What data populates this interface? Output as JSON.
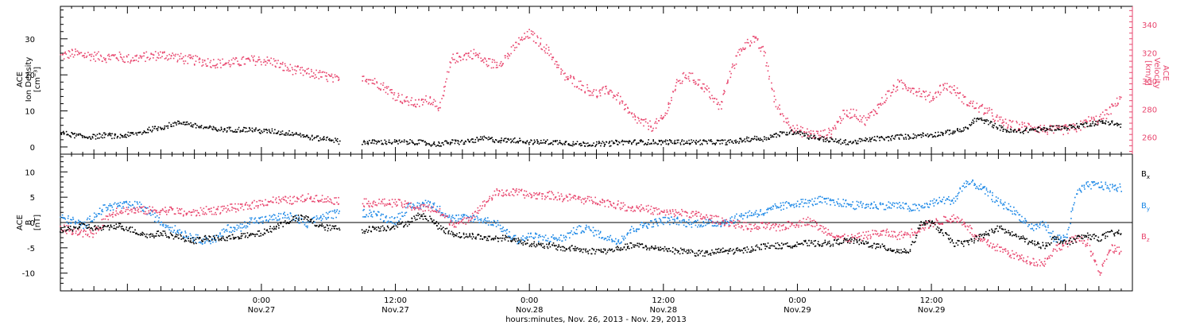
{
  "chart_data": [
    {
      "type": "scatter",
      "panel": "top",
      "x_unit": "hours since 2013-11-26 00:00 UT",
      "xlim": [
        6,
        102
      ],
      "left_axis": {
        "label_lines": [
          "ACE",
          "Ion Density",
          "[cm⁻³]"
        ],
        "ylim": [
          -2,
          39
        ],
        "ticks": [
          0,
          10,
          20,
          30
        ]
      },
      "right_axis": {
        "label_lines": [
          "ACE",
          "Velocity",
          "[km/s]"
        ],
        "ylim": [
          248,
          353
        ],
        "ticks": [
          260,
          280,
          300,
          320,
          340
        ],
        "color": "#e8466e"
      },
      "series": [
        {
          "name": "",
          "axis": "left",
          "color": "#000000",
          "x": [
            6,
            7,
            8,
            9,
            10,
            11,
            12,
            13,
            14,
            15,
            16,
            17,
            18,
            19,
            20,
            21,
            22,
            23,
            24,
            25,
            26,
            27,
            28,
            29,
            30,
            31,
            33,
            34,
            35,
            36,
            37,
            38,
            39,
            40,
            41,
            42,
            43,
            44,
            45,
            46,
            47,
            48,
            49,
            50,
            51,
            52,
            53,
            54,
            55,
            56,
            57,
            58,
            59,
            60,
            61,
            62,
            63,
            64,
            65,
            66,
            67,
            68,
            69,
            70,
            71,
            72,
            73,
            74,
            75,
            76,
            77,
            78,
            79,
            80,
            81,
            82,
            83,
            84,
            85,
            86,
            87,
            88,
            89,
            90,
            91,
            92,
            93,
            94,
            95,
            96,
            97,
            98,
            99,
            100,
            101
          ],
          "y": [
            4,
            3.5,
            3,
            3,
            3.5,
            3,
            3.5,
            4,
            5,
            5.5,
            6.5,
            7,
            6,
            5.5,
            5,
            5,
            5,
            5,
            4.5,
            4.5,
            4,
            4,
            3,
            2.5,
            2.5,
            1.5,
            1.5,
            1.5,
            1.5,
            1.5,
            1.5,
            1.5,
            1,
            1,
            1.5,
            1.5,
            2,
            2.5,
            2,
            2,
            2,
            1.5,
            1.5,
            1.5,
            1.5,
            1,
            1,
            1,
            1,
            1.5,
            1.5,
            1.5,
            1.5,
            1.5,
            1.5,
            1.5,
            1.5,
            1.5,
            1.5,
            1.5,
            2,
            2.5,
            2.5,
            3.5,
            4,
            4.5,
            3,
            2.5,
            2,
            1.5,
            1.5,
            2,
            2.5,
            2.5,
            3,
            3,
            3.5,
            3.5,
            4,
            4.5,
            5,
            8,
            7,
            5.5,
            4.5,
            4.5,
            5,
            5,
            5.5,
            5.5,
            6,
            6.5,
            7,
            7,
            6
          ]
        },
        {
          "name": "",
          "axis": "right",
          "color": "#e8466e",
          "x": [
            6,
            7,
            8,
            9,
            10,
            11,
            12,
            13,
            14,
            15,
            16,
            17,
            18,
            19,
            20,
            21,
            22,
            23,
            24,
            25,
            26,
            27,
            28,
            29,
            30,
            31,
            33,
            34,
            35,
            36,
            37,
            38,
            39,
            40,
            41,
            42,
            43,
            44,
            45,
            46,
            47,
            48,
            49,
            50,
            51,
            52,
            53,
            54,
            55,
            56,
            57,
            58,
            59,
            60,
            61,
            62,
            63,
            64,
            65,
            66,
            67,
            68,
            69,
            70,
            71,
            72,
            73,
            74,
            75,
            76,
            77,
            78,
            79,
            80,
            81,
            82,
            83,
            84,
            85,
            86,
            87,
            88,
            89,
            90,
            91,
            92,
            93,
            94,
            95,
            96,
            97,
            98,
            99,
            100,
            101
          ],
          "y": [
            318,
            320,
            319,
            318,
            317,
            318,
            316,
            317,
            318,
            319,
            318,
            316,
            315,
            314,
            313,
            313,
            314,
            315,
            315,
            314,
            310,
            308,
            306,
            305,
            303,
            300,
            304,
            300,
            296,
            290,
            286,
            284,
            288,
            282,
            316,
            318,
            320,
            314,
            312,
            318,
            328,
            334,
            327,
            318,
            304,
            300,
            295,
            291,
            294,
            288,
            276,
            271,
            268,
            274,
            296,
            305,
            300,
            293,
            281,
            308,
            324,
            331,
            320,
            284,
            272,
            265,
            263,
            262,
            264,
            276,
            278,
            272,
            280,
            290,
            298,
            296,
            292,
            288,
            297,
            294,
            286,
            282,
            279,
            272,
            269,
            268,
            268,
            266,
            265,
            266,
            267,
            272,
            273,
            280,
            290
          ]
        }
      ]
    },
    {
      "type": "scatter",
      "panel": "bottom",
      "x_unit": "hours since 2013-11-26 00:00 UT",
      "xlim": [
        6,
        102
      ],
      "y_axis": {
        "label_lines": [
          "ACE",
          "B",
          "[nT]"
        ],
        "ylim": [
          -13.5,
          13.5
        ],
        "ticks": [
          -10,
          -5,
          0,
          5,
          10
        ]
      },
      "zero_line": true,
      "series": [
        {
          "name": "B",
          "subscript": "x",
          "color": "#000000",
          "x": [
            6,
            7,
            8,
            9,
            10,
            11,
            12,
            13,
            14,
            15,
            16,
            17,
            18,
            19,
            20,
            21,
            22,
            23,
            24,
            25,
            26,
            27,
            28,
            29,
            30,
            31,
            33,
            34,
            35,
            36,
            37,
            38,
            39,
            40,
            41,
            42,
            43,
            44,
            45,
            46,
            47,
            48,
            49,
            50,
            51,
            52,
            53,
            54,
            55,
            56,
            57,
            58,
            59,
            60,
            61,
            62,
            63,
            64,
            65,
            66,
            67,
            68,
            69,
            70,
            71,
            72,
            73,
            74,
            75,
            76,
            77,
            78,
            79,
            80,
            81,
            82,
            83,
            84,
            85,
            86,
            87,
            88,
            89,
            90,
            91,
            92,
            93,
            94,
            95,
            96,
            97,
            98,
            99,
            100,
            101
          ],
          "y": [
            -1.5,
            -1,
            -0.5,
            -1,
            -1,
            -0.5,
            -1,
            -2,
            -2.5,
            -2,
            -2.5,
            -3,
            -3.5,
            -3,
            -3,
            -3,
            -2.5,
            -2.5,
            -2,
            -1,
            0,
            1,
            1,
            -0.5,
            -1,
            -1,
            -1.5,
            -1,
            -1,
            -0.5,
            0,
            1.5,
            1,
            -1,
            -2,
            -2.5,
            -2.5,
            -3,
            -3,
            -3,
            -3.5,
            -4,
            -4.5,
            -4.5,
            -5,
            -5,
            -5.5,
            -5.5,
            -5.5,
            -5,
            -4.5,
            -4.5,
            -5,
            -5,
            -5.5,
            -5.5,
            -6,
            -6,
            -5.5,
            -5.5,
            -5.5,
            -5,
            -4.5,
            -4.5,
            -4.5,
            -4,
            -4,
            -4,
            -4,
            -3.5,
            -3.5,
            -4,
            -4.5,
            -5,
            -5.5,
            -5.5,
            0,
            0,
            -2,
            -4,
            -4,
            -3,
            -2,
            -1,
            -2,
            -3,
            -4,
            -4.5,
            -3,
            -4,
            -3,
            -2.5,
            -3,
            -2,
            -2
          ]
        },
        {
          "name": "B",
          "subscript": "y",
          "color": "#1a87e6",
          "x": [
            6,
            7,
            8,
            9,
            10,
            11,
            12,
            13,
            14,
            15,
            16,
            17,
            18,
            19,
            20,
            21,
            22,
            23,
            24,
            25,
            26,
            27,
            28,
            29,
            30,
            31,
            33,
            34,
            35,
            36,
            37,
            38,
            39,
            40,
            41,
            42,
            43,
            44,
            45,
            46,
            47,
            48,
            49,
            50,
            51,
            52,
            53,
            54,
            55,
            56,
            57,
            58,
            59,
            60,
            61,
            62,
            63,
            64,
            65,
            66,
            67,
            68,
            69,
            70,
            71,
            72,
            73,
            74,
            75,
            76,
            77,
            78,
            79,
            80,
            81,
            82,
            83,
            84,
            85,
            86,
            87,
            88,
            89,
            90,
            91,
            92,
            93,
            94,
            95,
            96,
            97,
            98,
            99,
            100,
            101
          ],
          "y": [
            1,
            0.5,
            -0.5,
            1.5,
            3,
            3.5,
            3.5,
            3.5,
            2,
            0,
            -1,
            -2,
            -3,
            -3.5,
            -3,
            -1,
            -1,
            0.5,
            0.5,
            1,
            1.5,
            1,
            -0.5,
            1,
            1.5,
            2,
            2,
            2,
            1,
            0.5,
            3,
            3.5,
            4,
            2.5,
            1,
            1,
            1,
            0.5,
            0,
            -2,
            -3.5,
            -2.5,
            -3,
            -3,
            -3,
            -1.5,
            -1,
            -2,
            -3,
            -3.5,
            -1.5,
            -0.5,
            0,
            0.5,
            0.5,
            0,
            0,
            0,
            0,
            0.5,
            1.5,
            2,
            2,
            3,
            3.5,
            4,
            4,
            4.5,
            4,
            4,
            3.5,
            3.5,
            3.5,
            3.5,
            3.5,
            3,
            3,
            4,
            4.5,
            4.5,
            8,
            7.5,
            6,
            4,
            3,
            1,
            -1,
            0,
            -3,
            -3,
            6,
            7.5,
            7.5,
            7,
            7
          ]
        },
        {
          "name": "B",
          "subscript": "z",
          "color": "#e8466e",
          "x": [
            6,
            7,
            8,
            9,
            10,
            11,
            12,
            13,
            14,
            15,
            16,
            17,
            18,
            19,
            20,
            21,
            22,
            23,
            24,
            25,
            26,
            27,
            28,
            29,
            30,
            31,
            33,
            34,
            35,
            36,
            37,
            38,
            39,
            40,
            41,
            42,
            43,
            44,
            45,
            46,
            47,
            48,
            49,
            50,
            51,
            52,
            53,
            54,
            55,
            56,
            57,
            58,
            59,
            60,
            61,
            62,
            63,
            64,
            65,
            66,
            67,
            68,
            69,
            70,
            71,
            72,
            73,
            74,
            75,
            76,
            77,
            78,
            79,
            80,
            81,
            82,
            83,
            84,
            85,
            86,
            87,
            88,
            89,
            90,
            91,
            92,
            93,
            94,
            95,
            96,
            97,
            98,
            99,
            100,
            101
          ],
          "y": [
            -1,
            -1.5,
            -2,
            -2,
            1,
            2.5,
            2.5,
            2.5,
            2.5,
            2.5,
            2.5,
            2,
            2,
            2.5,
            2.5,
            3,
            3,
            3.5,
            4,
            4.5,
            4.5,
            4.5,
            5,
            5,
            4.5,
            4.5,
            4,
            4,
            4,
            4,
            3.5,
            3,
            3,
            2,
            0,
            0,
            2,
            4,
            6,
            6,
            6,
            5.5,
            5.5,
            5.5,
            5,
            5,
            4.5,
            4.5,
            4,
            3.5,
            3,
            3,
            2.5,
            2,
            2,
            2,
            1.5,
            1,
            0.5,
            0,
            -0.5,
            -1,
            -0.5,
            -1,
            -0.5,
            0,
            0.5,
            -1,
            -2,
            -3,
            -3,
            -2.5,
            -2,
            -2,
            -2.5,
            -2,
            -1,
            0,
            0.5,
            1,
            0,
            -3,
            -4,
            -5,
            -6,
            -7,
            -7.5,
            -8,
            -5,
            -4,
            -3,
            -4,
            -10,
            -5,
            -5.5
          ]
        }
      ]
    }
  ],
  "x_axis": {
    "tick_labels": [
      {
        "hour": 24,
        "time": "0:00",
        "date": "Nov.27"
      },
      {
        "hour": 36,
        "time": "12:00",
        "date": "Nov.27"
      },
      {
        "hour": 48,
        "time": "0:00",
        "date": "Nov.28"
      },
      {
        "hour": 60,
        "time": "12:00",
        "date": "Nov.28"
      },
      {
        "hour": 72,
        "time": "0:00",
        "date": "Nov.29"
      },
      {
        "hour": 84,
        "time": "12:00",
        "date": "Nov.29"
      }
    ],
    "title": "hours:minutes, Nov. 26, 2013 - Nov. 29, 2013"
  },
  "labels": {
    "top_left_line1": "ACE",
    "top_left_line2": "Ion Density",
    "top_left_line3": "[cm⁻³]",
    "top_right_line1": "ACE",
    "top_right_line2": "Velocity",
    "top_right_line3": "[km/s]",
    "bottom_left_line1": "ACE",
    "bottom_left_line2": "B",
    "bottom_left_line3": "[nT]",
    "legend_bx": "B",
    "legend_bx_sub": "x",
    "legend_by": "B",
    "legend_by_sub": "y",
    "legend_bz": "B",
    "legend_bz_sub": "z",
    "x_title": "hours:minutes, Nov. 26, 2013 - Nov. 29, 2013"
  },
  "colors": {
    "black": "#000000",
    "pink": "#e8466e",
    "blue": "#1a87e6"
  }
}
